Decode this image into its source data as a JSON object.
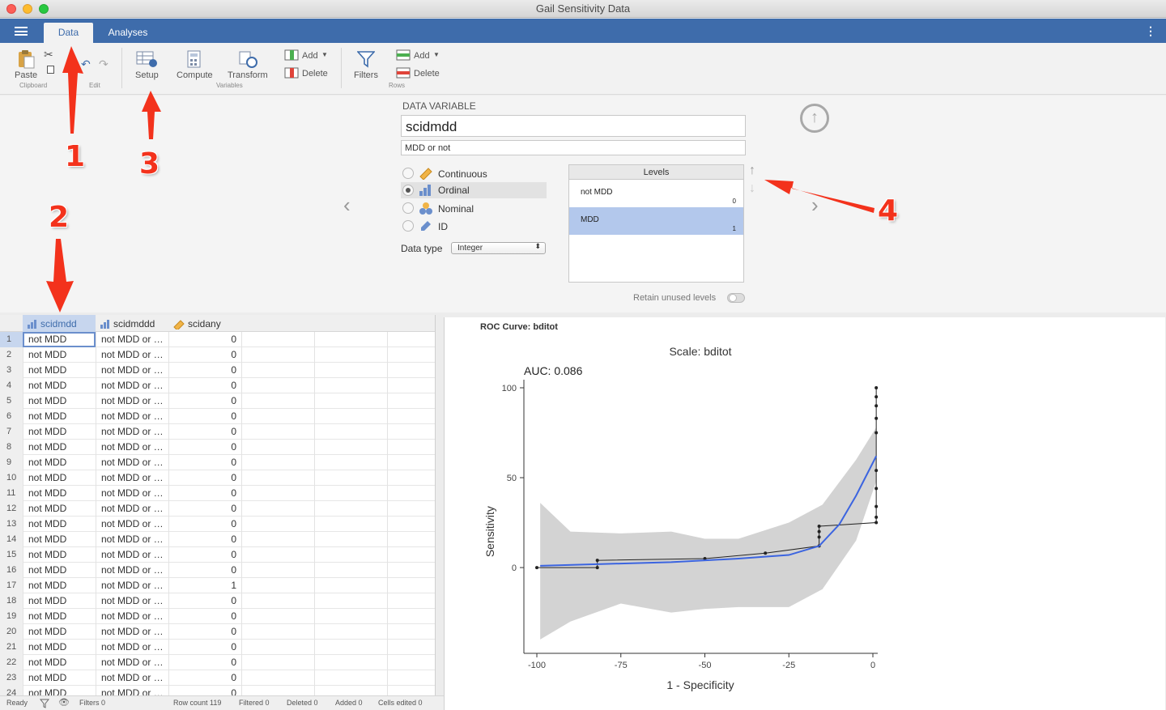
{
  "window": {
    "title": "Gail Sensitivity Data"
  },
  "tabs": [
    {
      "label": "Data"
    },
    {
      "label": "Analyses"
    }
  ],
  "ribbon": {
    "paste": "Paste",
    "clipboard_group": "Clipboard",
    "edit_group": "Edit",
    "setup": "Setup",
    "compute": "Compute",
    "transform": "Transform",
    "variables_add": "Add",
    "variables_delete": "Delete",
    "variables_group": "Variables",
    "filters": "Filters",
    "rows_add": "Add",
    "rows_delete": "Delete",
    "rows_group": "Rows"
  },
  "variable": {
    "section_title": "DATA VARIABLE",
    "name": "scidmdd",
    "description": "MDD or not",
    "measure_types": [
      "Continuous",
      "Ordinal",
      "Nominal",
      "ID"
    ],
    "data_type_label": "Data type",
    "data_type": "Integer",
    "levels_header": "Levels",
    "levels": [
      {
        "label": "not MDD",
        "value": "0"
      },
      {
        "label": "MDD",
        "value": "1"
      }
    ],
    "retain_label": "Retain unused levels"
  },
  "grid": {
    "columns": [
      "scidmdd",
      "scidmddd",
      "scidany"
    ],
    "rows": [
      [
        "1",
        "not MDD",
        "not MDD or …",
        "0"
      ],
      [
        "2",
        "not MDD",
        "not MDD or …",
        "0"
      ],
      [
        "3",
        "not MDD",
        "not MDD or …",
        "0"
      ],
      [
        "4",
        "not MDD",
        "not MDD or …",
        "0"
      ],
      [
        "5",
        "not MDD",
        "not MDD or …",
        "0"
      ],
      [
        "6",
        "not MDD",
        "not MDD or …",
        "0"
      ],
      [
        "7",
        "not MDD",
        "not MDD or …",
        "0"
      ],
      [
        "8",
        "not MDD",
        "not MDD or …",
        "0"
      ],
      [
        "9",
        "not MDD",
        "not MDD or …",
        "0"
      ],
      [
        "10",
        "not MDD",
        "not MDD or …",
        "0"
      ],
      [
        "11",
        "not MDD",
        "not MDD or …",
        "0"
      ],
      [
        "12",
        "not MDD",
        "not MDD or …",
        "0"
      ],
      [
        "13",
        "not MDD",
        "not MDD or …",
        "0"
      ],
      [
        "14",
        "not MDD",
        "not MDD or …",
        "0"
      ],
      [
        "15",
        "not MDD",
        "not MDD or …",
        "0"
      ],
      [
        "16",
        "not MDD",
        "not MDD or …",
        "0"
      ],
      [
        "17",
        "not MDD",
        "not MDD or …",
        "1"
      ],
      [
        "18",
        "not MDD",
        "not MDD or …",
        "0"
      ],
      [
        "19",
        "not MDD",
        "not MDD or …",
        "0"
      ],
      [
        "20",
        "not MDD",
        "not MDD or …",
        "0"
      ],
      [
        "21",
        "not MDD",
        "not MDD or …",
        "0"
      ],
      [
        "22",
        "not MDD",
        "not MDD or …",
        "0"
      ],
      [
        "23",
        "not MDD",
        "not MDD or …",
        "0"
      ],
      [
        "24",
        "not MDD",
        "not MDD or …",
        "0"
      ]
    ]
  },
  "status": {
    "ready": "Ready",
    "filters": "Filters 0",
    "row_count": "Row count 119",
    "filtered": "Filtered 0",
    "deleted": "Deleted 0",
    "added": "Added 0",
    "cells_edited": "Cells edited 0"
  },
  "output": {
    "heading": "ROC Curve: bditot"
  },
  "chart_data": {
    "type": "line",
    "title": "Scale: bditot",
    "subtitle": "AUC: 0.086",
    "xlabel": "1 - Specificity",
    "ylabel": "Sensitivity",
    "xlim": [
      -100,
      0
    ],
    "ylim": [
      -45,
      100
    ],
    "xticks": [
      -100,
      -75,
      -50,
      -25,
      0
    ],
    "yticks": [
      0,
      50,
      100
    ],
    "grid": false,
    "series": [
      {
        "style": "step",
        "color": "#222222",
        "x": [
          -100,
          -82,
          -82,
          -50,
          -32,
          -16,
          -16,
          -16,
          -16,
          1,
          1,
          1,
          1,
          1,
          1,
          1,
          1,
          1,
          1
        ],
        "y": [
          0,
          0,
          4,
          5,
          8,
          12,
          17,
          20,
          23,
          25,
          28,
          34,
          44,
          54,
          75,
          83,
          90,
          95,
          100
        ]
      },
      {
        "style": "smooth",
        "color": "#3b64e0",
        "x": [
          -99,
          -80,
          -60,
          -40,
          -25,
          -16,
          -10,
          -5,
          1
        ],
        "y": [
          1,
          2,
          3,
          5,
          7,
          12,
          24,
          40,
          62
        ]
      }
    ],
    "band": {
      "color": "#d3d3d3",
      "x": [
        -99,
        -90,
        -75,
        -60,
        -50,
        -40,
        -25,
        -15,
        -5,
        1
      ],
      "upper": [
        36,
        20,
        19,
        20,
        16,
        16,
        25,
        35,
        60,
        78
      ],
      "lower": [
        -40,
        -30,
        -20,
        -25,
        -23,
        -22,
        -22,
        -12,
        15,
        48
      ]
    }
  },
  "annotations": [
    "1",
    "2",
    "3",
    "4"
  ]
}
